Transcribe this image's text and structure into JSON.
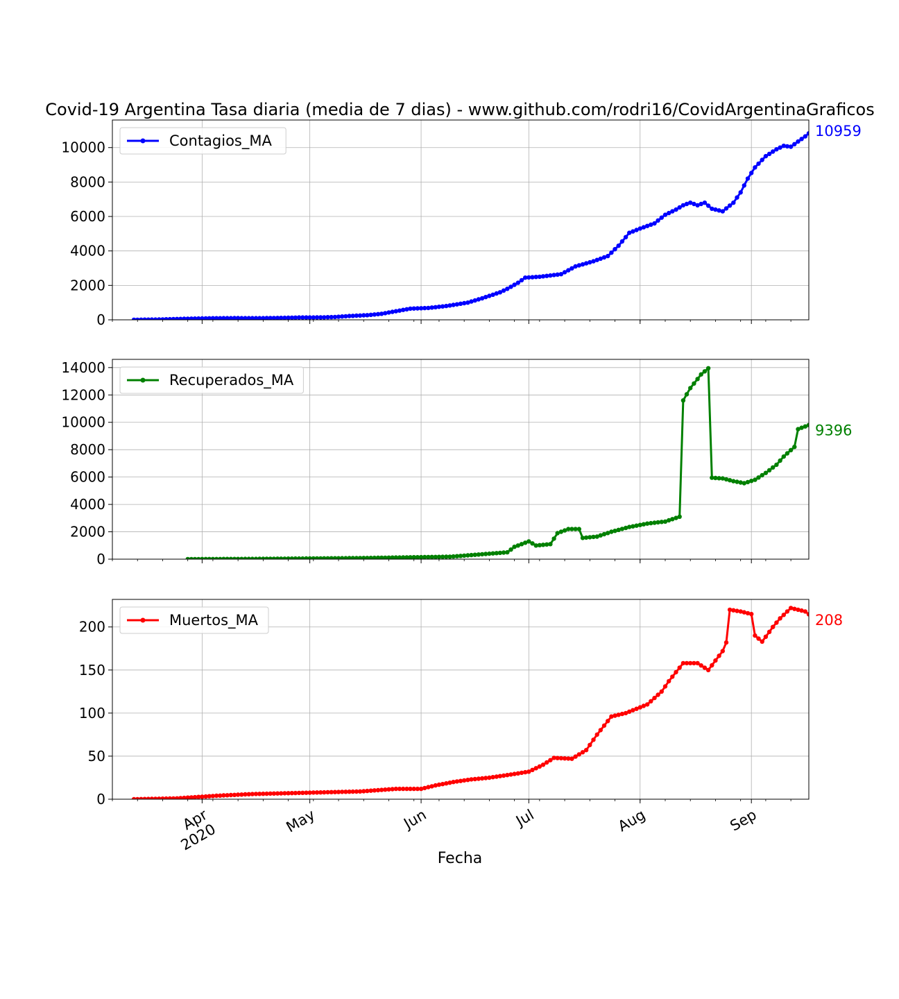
{
  "title": "Covid-19 Argentina Tasa diaria (media de 7 dias) - www.github.com/rodri16/CovidArgentinaGraficos",
  "xlabel": "Fecha",
  "x_tick_labels": [
    {
      "date": "2020-04-01",
      "label": "Apr",
      "year": "2020"
    },
    {
      "date": "2020-05-01",
      "label": "May",
      "year": ""
    },
    {
      "date": "2020-06-01",
      "label": "Jun",
      "year": ""
    },
    {
      "date": "2020-07-01",
      "label": "Jul",
      "year": ""
    },
    {
      "date": "2020-08-01",
      "label": "Aug",
      "year": ""
    },
    {
      "date": "2020-09-01",
      "label": "Sep",
      "year": ""
    }
  ],
  "chart_data": [
    {
      "type": "line",
      "name": "Contagios_MA",
      "legend": "Contagios_MA",
      "legend_position": "top-left",
      "color": "#0000ff",
      "last_value_label": "10959",
      "xlim": [
        "2020-03-07",
        "2020-09-17"
      ],
      "ylim": [
        0,
        11600
      ],
      "yticks": [
        0,
        2000,
        4000,
        6000,
        8000,
        10000
      ],
      "grid": true,
      "points": [
        [
          "2020-03-13",
          3
        ],
        [
          "2020-03-20",
          20
        ],
        [
          "2020-03-27",
          60
        ],
        [
          "2020-04-03",
          90
        ],
        [
          "2020-04-10",
          100
        ],
        [
          "2020-04-17",
          95
        ],
        [
          "2020-04-24",
          115
        ],
        [
          "2020-04-28",
          135
        ],
        [
          "2020-05-04",
          140
        ],
        [
          "2020-05-08",
          165
        ],
        [
          "2020-05-12",
          220
        ],
        [
          "2020-05-17",
          270
        ],
        [
          "2020-05-21",
          350
        ],
        [
          "2020-05-25",
          500
        ],
        [
          "2020-05-29",
          650
        ],
        [
          "2020-06-03",
          690
        ],
        [
          "2020-06-08",
          800
        ],
        [
          "2020-06-14",
          1000
        ],
        [
          "2020-06-18",
          1250
        ],
        [
          "2020-06-23",
          1600
        ],
        [
          "2020-06-25",
          1800
        ],
        [
          "2020-06-28",
          2150
        ],
        [
          "2020-06-30",
          2450
        ],
        [
          "2020-07-04",
          2500
        ],
        [
          "2020-07-10",
          2650
        ],
        [
          "2020-07-14",
          3100
        ],
        [
          "2020-07-19",
          3400
        ],
        [
          "2020-07-23",
          3700
        ],
        [
          "2020-07-26",
          4300
        ],
        [
          "2020-07-29",
          5050
        ],
        [
          "2020-08-01",
          5300
        ],
        [
          "2020-08-05",
          5600
        ],
        [
          "2020-08-08",
          6100
        ],
        [
          "2020-08-11",
          6400
        ],
        [
          "2020-08-13",
          6650
        ],
        [
          "2020-08-15",
          6800
        ],
        [
          "2020-08-17",
          6650
        ],
        [
          "2020-08-19",
          6800
        ],
        [
          "2020-08-21",
          6450
        ],
        [
          "2020-08-24",
          6300
        ],
        [
          "2020-08-27",
          6800
        ],
        [
          "2020-08-29",
          7400
        ],
        [
          "2020-08-31",
          8200
        ],
        [
          "2020-09-02",
          8850
        ],
        [
          "2020-09-05",
          9500
        ],
        [
          "2020-09-08",
          9900
        ],
        [
          "2020-09-10",
          10100
        ],
        [
          "2020-09-12",
          10050
        ],
        [
          "2020-09-14",
          10350
        ],
        [
          "2020-09-16",
          10650
        ],
        [
          "2020-09-18",
          11000
        ],
        [
          "2020-09-20",
          10959
        ]
      ]
    },
    {
      "type": "line",
      "name": "Recuperados_MA",
      "legend": "Recuperados_MA",
      "legend_position": "top-left",
      "color": "#008000",
      "last_value_label": "9396",
      "xlim": [
        "2020-03-07",
        "2020-09-17"
      ],
      "ylim": [
        0,
        14600
      ],
      "yticks": [
        0,
        2000,
        4000,
        6000,
        8000,
        10000,
        12000,
        14000
      ],
      "grid": true,
      "points": [
        [
          "2020-03-28",
          5
        ],
        [
          "2020-04-15",
          20
        ],
        [
          "2020-04-30",
          50
        ],
        [
          "2020-05-15",
          80
        ],
        [
          "2020-05-30",
          140
        ],
        [
          "2020-06-09",
          180
        ],
        [
          "2020-06-20",
          400
        ],
        [
          "2020-06-25",
          500
        ],
        [
          "2020-06-27",
          900
        ],
        [
          "2020-07-01",
          1300
        ],
        [
          "2020-07-03",
          1000
        ],
        [
          "2020-07-07",
          1100
        ],
        [
          "2020-07-09",
          1900
        ],
        [
          "2020-07-12",
          2200
        ],
        [
          "2020-07-15",
          2200
        ],
        [
          "2020-07-16",
          1550
        ],
        [
          "2020-07-20",
          1650
        ],
        [
          "2020-07-24",
          2000
        ],
        [
          "2020-07-29",
          2350
        ],
        [
          "2020-08-03",
          2600
        ],
        [
          "2020-08-08",
          2750
        ],
        [
          "2020-08-12",
          3100
        ],
        [
          "2020-08-13",
          11600
        ],
        [
          "2020-08-15",
          12500
        ],
        [
          "2020-08-18",
          13500
        ],
        [
          "2020-08-20",
          13950
        ],
        [
          "2020-08-21",
          5950
        ],
        [
          "2020-08-24",
          5900
        ],
        [
          "2020-08-27",
          5700
        ],
        [
          "2020-08-30",
          5550
        ],
        [
          "2020-09-02",
          5800
        ],
        [
          "2020-09-05",
          6300
        ],
        [
          "2020-09-08",
          6900
        ],
        [
          "2020-09-10",
          7500
        ],
        [
          "2020-09-13",
          8200
        ],
        [
          "2020-09-14",
          9500
        ],
        [
          "2020-09-17",
          9800
        ],
        [
          "2020-09-20",
          10300
        ],
        [
          "2020-09-21",
          9396
        ]
      ]
    },
    {
      "type": "line",
      "name": "Muertos_MA",
      "legend": "Muertos_MA",
      "legend_position": "top-left",
      "color": "#ff0000",
      "last_value_label": "208",
      "xlim": [
        "2020-03-07",
        "2020-09-17"
      ],
      "ylim": [
        0,
        232
      ],
      "yticks": [
        0,
        50,
        100,
        150,
        200
      ],
      "grid": true,
      "points": [
        [
          "2020-03-13",
          0
        ],
        [
          "2020-03-25",
          1
        ],
        [
          "2020-04-05",
          4
        ],
        [
          "2020-04-15",
          6
        ],
        [
          "2020-04-25",
          7
        ],
        [
          "2020-05-05",
          8
        ],
        [
          "2020-05-15",
          9
        ],
        [
          "2020-05-25",
          12
        ],
        [
          "2020-06-01",
          12
        ],
        [
          "2020-06-05",
          16
        ],
        [
          "2020-06-10",
          20
        ],
        [
          "2020-06-15",
          23
        ],
        [
          "2020-06-20",
          25
        ],
        [
          "2020-06-25",
          28
        ],
        [
          "2020-07-01",
          32
        ],
        [
          "2020-07-05",
          40
        ],
        [
          "2020-07-08",
          48
        ],
        [
          "2020-07-13",
          47
        ],
        [
          "2020-07-17",
          57
        ],
        [
          "2020-07-20",
          75
        ],
        [
          "2020-07-24",
          96
        ],
        [
          "2020-07-28",
          100
        ],
        [
          "2020-08-03",
          110
        ],
        [
          "2020-08-07",
          125
        ],
        [
          "2020-08-09",
          137
        ],
        [
          "2020-08-13",
          158
        ],
        [
          "2020-08-17",
          158
        ],
        [
          "2020-08-20",
          150
        ],
        [
          "2020-08-24",
          172
        ],
        [
          "2020-08-25",
          182
        ],
        [
          "2020-08-26",
          220
        ],
        [
          "2020-08-29",
          218
        ],
        [
          "2020-09-01",
          215
        ],
        [
          "2020-09-02",
          190
        ],
        [
          "2020-09-04",
          183
        ],
        [
          "2020-09-07",
          200
        ],
        [
          "2020-09-09",
          210
        ],
        [
          "2020-09-12",
          222
        ],
        [
          "2020-09-16",
          218
        ],
        [
          "2020-09-19",
          208
        ]
      ]
    }
  ]
}
